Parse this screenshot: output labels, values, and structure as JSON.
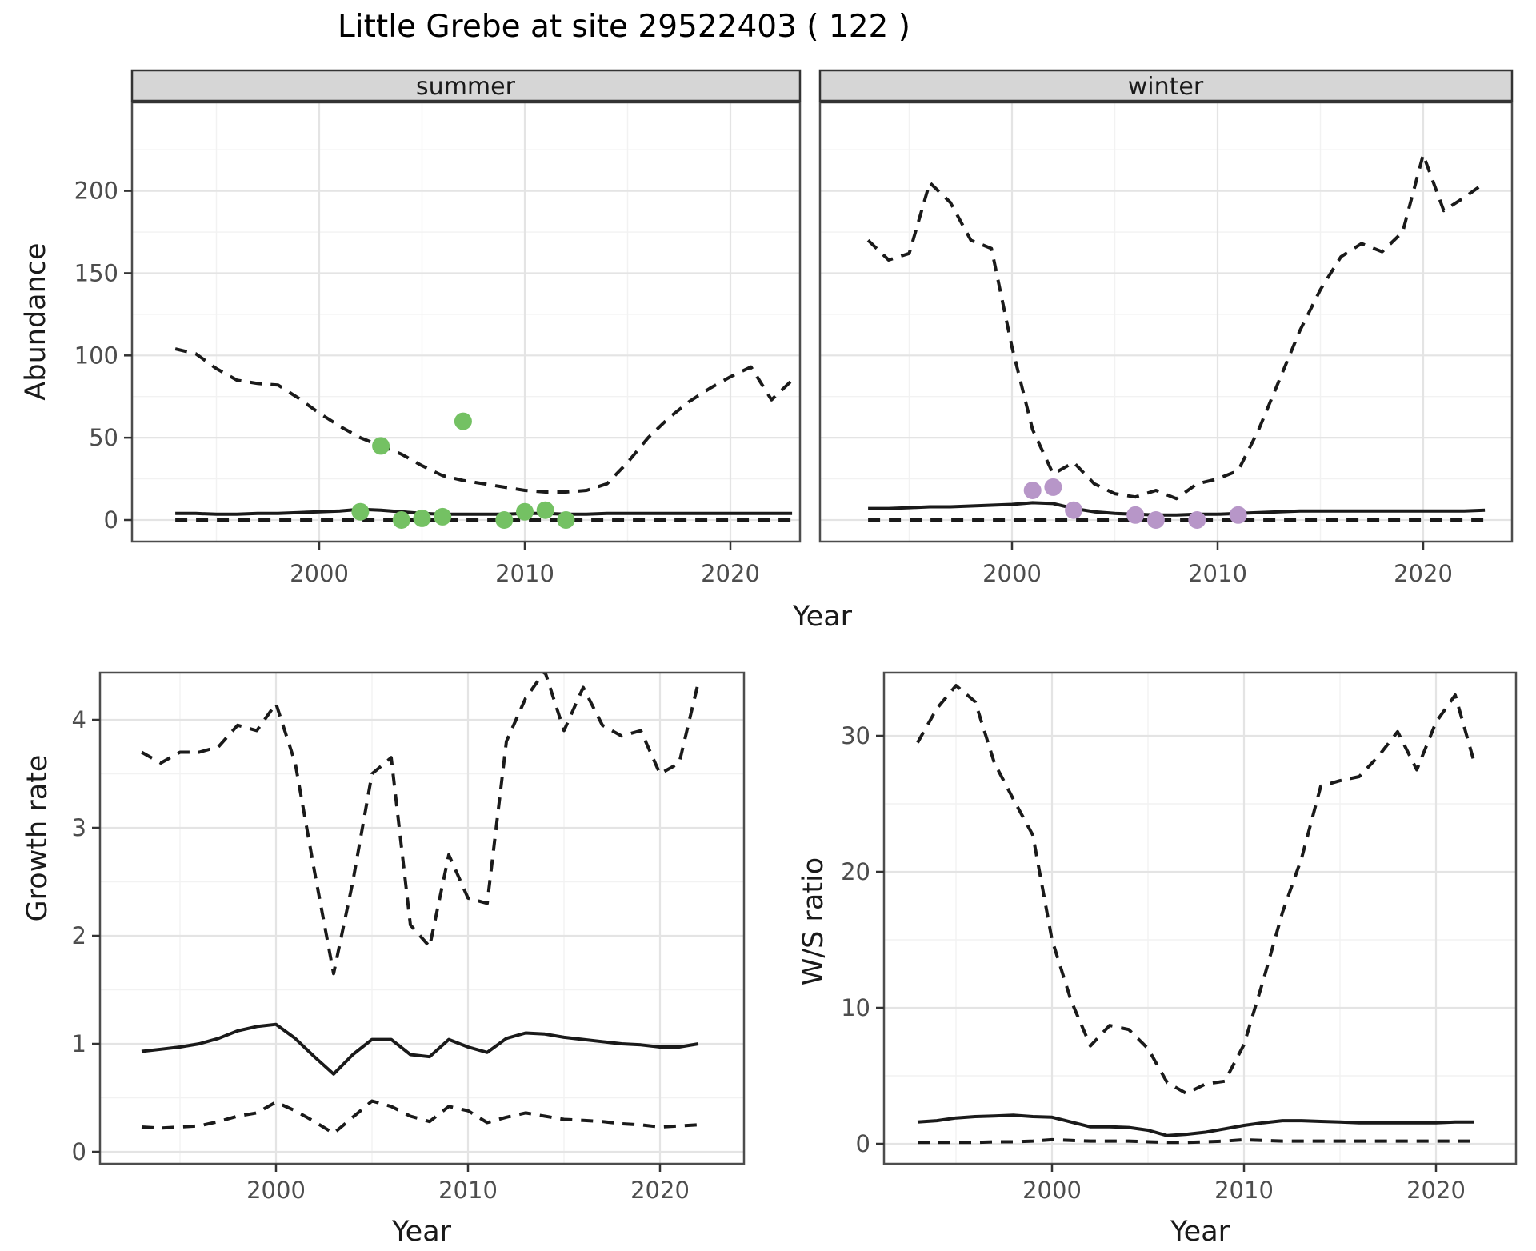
{
  "title": "Little Grebe at site 29522403 ( 122 )",
  "colors": {
    "line": "#1a1a1a",
    "summer_points": "#74c163",
    "winter_points": "#b796c8",
    "strip_bg": "#d6d6d6",
    "panel_bg": "#ffffff",
    "grid_major": "#e4e4e4",
    "grid_minor": "#f2f2f2",
    "panel_border": "#4d4d4d",
    "tick_label": "#4d4d4d"
  },
  "chart_data": [
    {
      "facet": "summer",
      "type": "line",
      "xlabel": "Year",
      "ylabel": "Abundance",
      "x_ticks": [
        2000,
        2010,
        2020
      ],
      "y_ticks": [
        0,
        50,
        100,
        150,
        200
      ],
      "xlim": [
        1991.5,
        2025.5
      ],
      "ylim": [
        -13,
        253
      ],
      "grid": true,
      "legend": "none",
      "years": [
        1993,
        1994,
        1995,
        1996,
        1997,
        1998,
        1999,
        2000,
        2001,
        2002,
        2003,
        2004,
        2005,
        2006,
        2007,
        2008,
        2009,
        2010,
        2011,
        2012,
        2013,
        2014,
        2015,
        2016,
        2017,
        2018,
        2019,
        2020,
        2021,
        2022,
        2023
      ],
      "series": [
        {
          "name": "upper_ci",
          "linetype": "dashed",
          "values": [
            104,
            101,
            92,
            85,
            83,
            82,
            74,
            65,
            57,
            50,
            45,
            40,
            33,
            27,
            24,
            22,
            20,
            18,
            17,
            17,
            18,
            22,
            35,
            50,
            62,
            72,
            80,
            87,
            93,
            73,
            85
          ]
        },
        {
          "name": "median",
          "linetype": "solid",
          "values": [
            4,
            4,
            3.5,
            3.5,
            4,
            4,
            4.5,
            5,
            5.5,
            6.5,
            6,
            5,
            4,
            3.5,
            3.5,
            3.5,
            3.5,
            4,
            4,
            3.5,
            3.5,
            4,
            4,
            4,
            4,
            4,
            4,
            4,
            4,
            4,
            4
          ]
        },
        {
          "name": "lower_ci",
          "linetype": "dashed",
          "values": [
            0,
            0,
            0,
            0,
            0,
            0,
            0,
            0,
            0,
            0,
            0,
            0,
            0,
            0,
            0,
            0,
            0,
            0,
            0,
            0,
            0,
            0,
            0,
            0,
            0,
            0,
            0,
            0,
            0,
            0,
            0
          ]
        }
      ],
      "points": {
        "name": "summer_observations",
        "color": "#74c163",
        "years": [
          2002,
          2003,
          2004,
          2005,
          2006,
          2007,
          2009,
          2010,
          2011,
          2012
        ],
        "values": [
          5,
          45,
          0,
          1,
          2,
          60,
          0,
          5,
          6,
          0
        ]
      }
    },
    {
      "facet": "winter",
      "type": "line",
      "xlabel": "Year",
      "ylabel": "Abundance",
      "x_ticks": [
        2000,
        2010,
        2020
      ],
      "y_ticks": [
        0,
        50,
        100,
        150,
        200
      ],
      "xlim": [
        1991.5,
        2025.5
      ],
      "ylim": [
        -13,
        253
      ],
      "grid": true,
      "legend": "none",
      "years": [
        1993,
        1994,
        1995,
        1996,
        1997,
        1998,
        1999,
        2000,
        2001,
        2002,
        2003,
        2004,
        2005,
        2006,
        2007,
        2008,
        2009,
        2010,
        2011,
        2012,
        2013,
        2014,
        2015,
        2016,
        2017,
        2018,
        2019,
        2020,
        2021,
        2022,
        2023
      ],
      "series": [
        {
          "name": "upper_ci",
          "linetype": "dashed",
          "values": [
            170,
            158,
            162,
            205,
            193,
            170,
            165,
            105,
            55,
            28,
            35,
            22,
            16,
            14,
            18,
            13,
            22,
            25,
            30,
            55,
            85,
            115,
            140,
            160,
            168,
            163,
            175,
            222,
            188,
            196,
            205
          ]
        },
        {
          "name": "median",
          "linetype": "solid",
          "values": [
            7,
            7,
            7.5,
            8,
            8,
            8.5,
            9,
            9.5,
            10.5,
            10,
            7,
            5,
            4,
            3.5,
            3,
            3,
            3.5,
            3.5,
            4,
            4.5,
            5,
            5.5,
            5.5,
            5.5,
            5.5,
            5.5,
            5.5,
            5.5,
            5.5,
            5.5,
            6
          ]
        },
        {
          "name": "lower_ci",
          "linetype": "dashed",
          "values": [
            0,
            0,
            0,
            0,
            0,
            0,
            0,
            0,
            0,
            0,
            0,
            0,
            0,
            0,
            0,
            0,
            0,
            0,
            0,
            0,
            0,
            0,
            0,
            0,
            0,
            0,
            0,
            0,
            0,
            0,
            0
          ]
        }
      ],
      "points": {
        "name": "winter_observations",
        "color": "#b796c8",
        "years": [
          2001,
          2002,
          2003,
          2006,
          2007,
          2009,
          2011
        ],
        "values": [
          18,
          20,
          6,
          3,
          0,
          0,
          3
        ]
      }
    },
    {
      "facet": null,
      "type": "line",
      "xlabel": "Year",
      "ylabel": "Growth rate",
      "x_ticks": [
        2000,
        2010,
        2020
      ],
      "y_ticks": [
        0,
        1,
        2,
        3,
        4
      ],
      "xlim": [
        1991.5,
        2023.5
      ],
      "ylim": [
        -0.11,
        4.44
      ],
      "grid": true,
      "legend": "none",
      "years": [
        1993,
        1994,
        1995,
        1996,
        1997,
        1998,
        1999,
        2000,
        2001,
        2002,
        2003,
        2004,
        2005,
        2006,
        2007,
        2008,
        2009,
        2010,
        2011,
        2012,
        2013,
        2014,
        2015,
        2016,
        2017,
        2018,
        2019,
        2020,
        2021,
        2022
      ],
      "series": [
        {
          "name": "upper_ci",
          "linetype": "dashed",
          "values": [
            3.7,
            3.6,
            3.7,
            3.7,
            3.75,
            3.95,
            3.9,
            4.15,
            3.6,
            2.6,
            1.65,
            2.5,
            3.5,
            3.65,
            2.1,
            1.9,
            2.75,
            2.35,
            2.3,
            3.8,
            4.2,
            4.45,
            3.9,
            4.3,
            3.95,
            3.85,
            3.9,
            3.5,
            3.6,
            4.35
          ]
        },
        {
          "name": "median",
          "linetype": "solid",
          "values": [
            0.93,
            0.95,
            0.97,
            1.0,
            1.05,
            1.12,
            1.16,
            1.18,
            1.05,
            0.88,
            0.72,
            0.9,
            1.04,
            1.04,
            0.9,
            0.88,
            1.04,
            0.97,
            0.92,
            1.05,
            1.1,
            1.09,
            1.06,
            1.04,
            1.02,
            1.0,
            0.99,
            0.97,
            0.97,
            1.0
          ]
        },
        {
          "name": "lower_ci",
          "linetype": "dashed",
          "values": [
            0.23,
            0.22,
            0.23,
            0.24,
            0.28,
            0.33,
            0.36,
            0.46,
            0.38,
            0.28,
            0.17,
            0.32,
            0.47,
            0.42,
            0.33,
            0.28,
            0.42,
            0.38,
            0.27,
            0.32,
            0.36,
            0.33,
            0.3,
            0.29,
            0.28,
            0.26,
            0.25,
            0.23,
            0.24,
            0.25
          ]
        }
      ],
      "points": null
    },
    {
      "facet": null,
      "type": "line",
      "xlabel": "Year",
      "ylabel": "W/S ratio",
      "x_ticks": [
        2000,
        2010,
        2020
      ],
      "y_ticks": [
        0,
        10,
        20,
        30
      ],
      "xlim": [
        1991.5,
        2023.5
      ],
      "ylim": [
        -1.5,
        34.6
      ],
      "grid": true,
      "legend": "none",
      "years": [
        1993,
        1994,
        1995,
        1996,
        1997,
        1998,
        1999,
        2000,
        2001,
        2002,
        2003,
        2004,
        2005,
        2006,
        2007,
        2008,
        2009,
        2010,
        2011,
        2012,
        2013,
        2014,
        2015,
        2016,
        2017,
        2018,
        2019,
        2020,
        2021,
        2022
      ],
      "series": [
        {
          "name": "upper_ci",
          "linetype": "dashed",
          "values": [
            29.5,
            32,
            33.7,
            32.5,
            28,
            25.3,
            22.7,
            15,
            10.5,
            7.2,
            8.7,
            8.4,
            7,
            4.5,
            3.7,
            4.4,
            4.6,
            7.3,
            12,
            17,
            21,
            26.3,
            26.7,
            27,
            28.5,
            30.3,
            27.5,
            31,
            33,
            28
          ]
        },
        {
          "name": "median",
          "linetype": "solid",
          "values": [
            1.6,
            1.7,
            1.9,
            2.0,
            2.05,
            2.1,
            2.0,
            1.95,
            1.6,
            1.25,
            1.25,
            1.2,
            1.0,
            0.6,
            0.7,
            0.85,
            1.1,
            1.35,
            1.55,
            1.7,
            1.7,
            1.65,
            1.6,
            1.55,
            1.55,
            1.55,
            1.55,
            1.55,
            1.6,
            1.6
          ]
        },
        {
          "name": "lower_ci",
          "linetype": "dashed",
          "values": [
            0.1,
            0.1,
            0.1,
            0.1,
            0.15,
            0.15,
            0.2,
            0.3,
            0.25,
            0.2,
            0.2,
            0.2,
            0.15,
            0.1,
            0.1,
            0.15,
            0.2,
            0.3,
            0.25,
            0.2,
            0.2,
            0.2,
            0.2,
            0.2,
            0.2,
            0.2,
            0.2,
            0.2,
            0.2,
            0.2
          ]
        }
      ],
      "points": null
    }
  ]
}
